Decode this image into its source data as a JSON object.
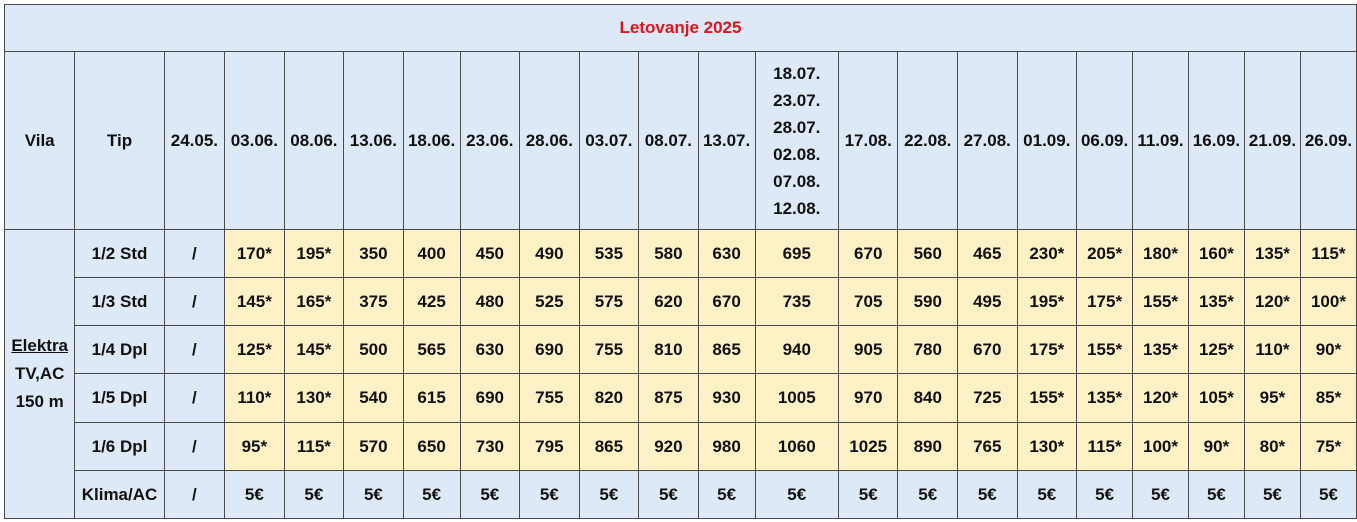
{
  "title": "Letovanje 2025",
  "headers": {
    "vila": "Vila",
    "tip": "Tip",
    "dates": [
      "24.05.",
      "03.06.",
      "08.06.",
      "13.06.",
      "18.06.",
      "23.06.",
      "28.06.",
      "03.07.",
      "08.07.",
      "13.07.",
      "18.07.|23.07.|28.07.|02.08.|07.08.|12.08.",
      "17.08.",
      "22.08.",
      "27.08.",
      "01.09.",
      "06.09.",
      "11.09.",
      "16.09.",
      "21.09.",
      "26.09."
    ]
  },
  "vila": {
    "name": "Elektra",
    "features": "TV,AC",
    "distance": "150 m"
  },
  "rows": [
    {
      "tip": "1/2 Std",
      "values": [
        "/",
        "170*",
        "195*",
        "350",
        "400",
        "450",
        "490",
        "535",
        "580",
        "630",
        "695",
        "670",
        "560",
        "465",
        "230*",
        "205*",
        "180*",
        "160*",
        "135*",
        "115*"
      ]
    },
    {
      "tip": "1/3 Std",
      "values": [
        "/",
        "145*",
        "165*",
        "375",
        "425",
        "480",
        "525",
        "575",
        "620",
        "670",
        "735",
        "705",
        "590",
        "495",
        "195*",
        "175*",
        "155*",
        "135*",
        "120*",
        "100*"
      ]
    },
    {
      "tip": "1/4  Dpl",
      "values": [
        "/",
        "125*",
        "145*",
        "500",
        "565",
        "630",
        "690",
        "755",
        "810",
        "865",
        "940",
        "905",
        "780",
        "670",
        "175*",
        "155*",
        "135*",
        "125*",
        "110*",
        "90*"
      ]
    },
    {
      "tip": "1/5 Dpl",
      "values": [
        "/",
        "110*",
        "130*",
        "540",
        "615",
        "690",
        "755",
        "820",
        "875",
        "930",
        "1005",
        "970",
        "840",
        "725",
        "155*",
        "135*",
        "120*",
        "105*",
        "95*",
        "85*"
      ]
    },
    {
      "tip": "1/6 Dpl",
      "values": [
        "/",
        "95*",
        "115*",
        "570",
        "650",
        "730",
        "795",
        "865",
        "920",
        "980",
        "1060",
        "1025",
        "890",
        "765",
        "130*",
        "115*",
        "100*",
        "90*",
        "80*",
        "75*"
      ]
    },
    {
      "tip": "Klima/AC",
      "values": [
        "/",
        "5€",
        "5€",
        "5€",
        "5€",
        "5€",
        "5€",
        "5€",
        "5€",
        "5€",
        "5€",
        "5€",
        "5€",
        "5€",
        "5€",
        "5€",
        "5€",
        "5€",
        "5€",
        "5€"
      ]
    }
  ]
}
